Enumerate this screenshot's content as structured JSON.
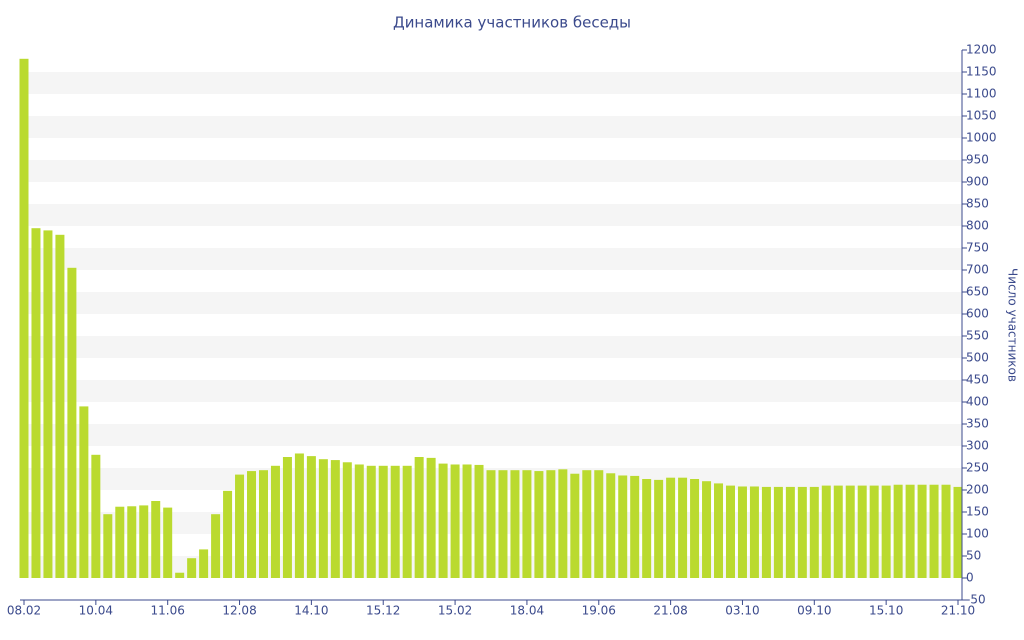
{
  "chart_data": {
    "type": "bar",
    "title": "Динамика участников беседы",
    "y_label": "Число участников",
    "categories": [
      "08.02",
      null,
      null,
      null,
      null,
      null,
      "10.04",
      null,
      null,
      null,
      null,
      null,
      "11.06",
      null,
      null,
      null,
      null,
      null,
      "12.08",
      null,
      null,
      null,
      null,
      null,
      "14.10",
      null,
      null,
      null,
      null,
      null,
      "15.12",
      null,
      null,
      null,
      null,
      null,
      "15.02",
      null,
      null,
      null,
      null,
      null,
      "18.04",
      null,
      null,
      null,
      null,
      null,
      "19.06",
      null,
      null,
      null,
      null,
      null,
      "21.08",
      null,
      null,
      null,
      null,
      null,
      "03.10",
      null,
      null,
      null,
      null,
      null,
      "09.10",
      null,
      null,
      null,
      null,
      null,
      "15.10",
      null,
      null,
      null,
      null,
      null,
      "21.10"
    ],
    "values": [
      1180,
      795,
      790,
      780,
      705,
      390,
      280,
      145,
      162,
      163,
      165,
      175,
      160,
      12,
      45,
      65,
      145,
      198,
      235,
      243,
      245,
      255,
      275,
      283,
      277,
      270,
      268,
      263,
      258,
      255,
      255,
      255,
      255,
      275,
      273,
      260,
      258,
      258,
      257,
      245,
      245,
      245,
      245,
      243,
      245,
      247,
      237,
      245,
      245,
      238,
      233,
      232,
      225,
      223,
      228,
      228,
      225,
      220,
      215,
      210,
      208,
      208,
      207,
      207,
      207,
      207,
      207,
      210,
      210,
      210,
      210,
      210,
      210,
      212,
      212,
      212,
      212,
      212,
      207
    ],
    "color": "#bada2f",
    "ylim": [
      -50,
      1200
    ],
    "yticks": [
      -50,
      0,
      50,
      100,
      150,
      200,
      250,
      300,
      350,
      400,
      450,
      500,
      550,
      600,
      650,
      700,
      750,
      800,
      850,
      900,
      950,
      1000,
      1050,
      1100,
      1150,
      1200
    ],
    "grid": true,
    "y_axis_side": "right"
  }
}
